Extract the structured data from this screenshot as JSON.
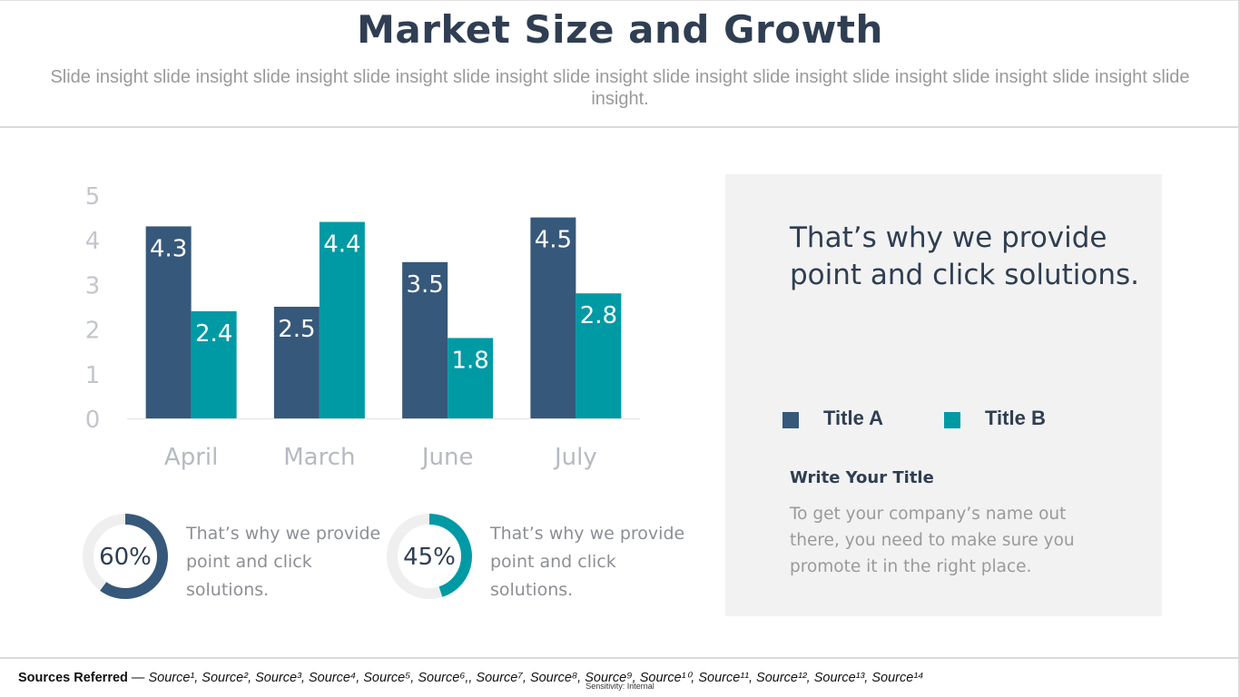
{
  "header": {
    "title": "Market Size and Growth",
    "subtitle": "Slide insight slide insight slide insight slide insight slide insight slide insight slide insight slide insight slide insight slide insight slide insight slide insight."
  },
  "chart_data": {
    "type": "bar",
    "categories": [
      "April",
      "March",
      "June",
      "July"
    ],
    "series": [
      {
        "name": "Title A",
        "values": [
          4.3,
          2.5,
          3.5,
          4.5
        ],
        "color": "#36587b"
      },
      {
        "name": "Title B",
        "values": [
          2.4,
          4.4,
          1.8,
          2.8
        ],
        "color": "#009aa5"
      }
    ],
    "ylim": [
      0,
      5
    ],
    "yticks": [
      0,
      1,
      2,
      3,
      4,
      5
    ],
    "data_labels": true,
    "legend": "right panel",
    "grid": false
  },
  "kpis": [
    {
      "value": "60%",
      "fraction": 0.6,
      "color": "#36587b",
      "text": "That’s why we provide point and click solutions."
    },
    {
      "value": "45%",
      "fraction": 0.45,
      "color": "#009aa5",
      "text": "That’s why we provide point and click solutions."
    }
  ],
  "panel": {
    "heading": "That’s why we provide point and click solutions.",
    "legend": [
      {
        "label": "Title A",
        "color": "#36587b"
      },
      {
        "label": "Title B",
        "color": "#009aa5"
      }
    ],
    "subtitle": "Write Your Title",
    "body": "To get your company’s name out there, you need to make sure you promote it in the right place."
  },
  "footer": {
    "sources_label": "Sources Referred",
    "sources_separator": " — ",
    "sources": [
      "Source¹",
      "Source²",
      "Source³",
      "Source⁴",
      "Source⁵",
      "Source⁶,",
      "Source⁷",
      "Source⁸",
      "Source⁹",
      "Source¹⁰",
      "Source¹¹",
      "Source¹²",
      "Source¹³",
      "Source¹⁴"
    ],
    "sensitivity": "Sensitivity: Internal"
  }
}
